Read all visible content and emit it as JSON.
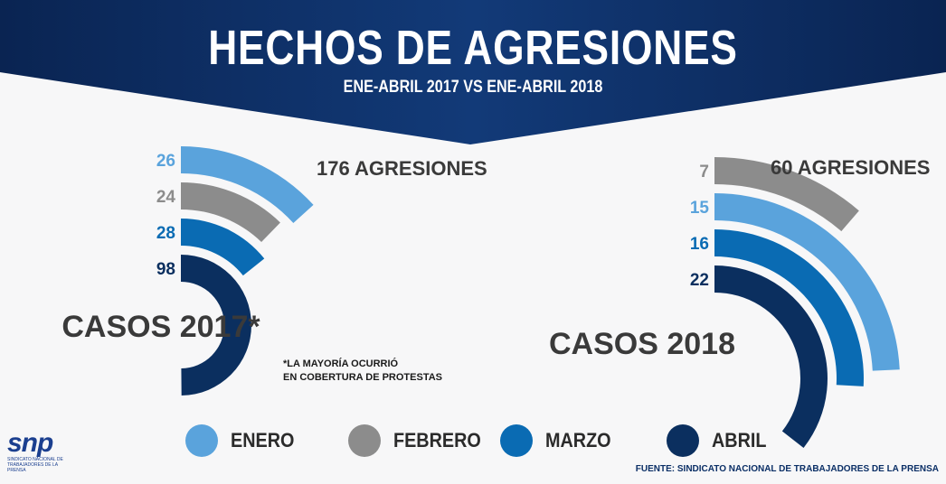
{
  "header": {
    "title": "HECHOS DE AGRESIONES",
    "subtitle": "ENE-ABRIL 2017 VS ENE-ABRIL 2018"
  },
  "colors": {
    "banner": "#0d2f63",
    "enero": "#5aa3dc",
    "febrero": "#8c8c8c",
    "marzo": "#0a6bb3",
    "abril": "#0b2f5f"
  },
  "chart_data": [
    {
      "type": "radial-bar",
      "label": "CASOS 2017*",
      "total_label": "176 AGRESIONES",
      "total": 176,
      "note_lines": [
        "*LA MAYORÍA OCURRIÓ",
        "EN COBERTURA DE PROTESTAS"
      ],
      "series": [
        {
          "name": "ENERO",
          "label": "26",
          "value": 26
        },
        {
          "name": "FEBRERO",
          "label": "24",
          "value": 24
        },
        {
          "name": "MARZO",
          "label": "28",
          "value": 28
        },
        {
          "name": "ABRIL",
          "label": "98",
          "value": 98
        }
      ]
    },
    {
      "type": "radial-bar",
      "label": "CASOS 2018",
      "total_label": "60 AGRESIONES",
      "total": 60,
      "series": [
        {
          "name": "FEBRERO",
          "label": "7",
          "value": 7
        },
        {
          "name": "ENERO",
          "label": "15",
          "value": 15
        },
        {
          "name": "MARZO",
          "label": "16",
          "value": 16
        },
        {
          "name": "ABRIL",
          "label": "22",
          "value": 22
        }
      ]
    }
  ],
  "legend": [
    {
      "name": "ENERO",
      "color": "#5aa3dc"
    },
    {
      "name": "FEBRERO",
      "color": "#8c8c8c"
    },
    {
      "name": "MARZO",
      "color": "#0a6bb3"
    },
    {
      "name": "ABRIL",
      "color": "#0b2f5f"
    }
  ],
  "logo": {
    "mark": "snp",
    "subtitle": "SINDICATO NACIONAL DE TRABAJADORES DE LA PRENSA"
  },
  "source": "FUENTE: SINDICATO NACIONAL DE TRABAJADORES DE LA PRENSA"
}
